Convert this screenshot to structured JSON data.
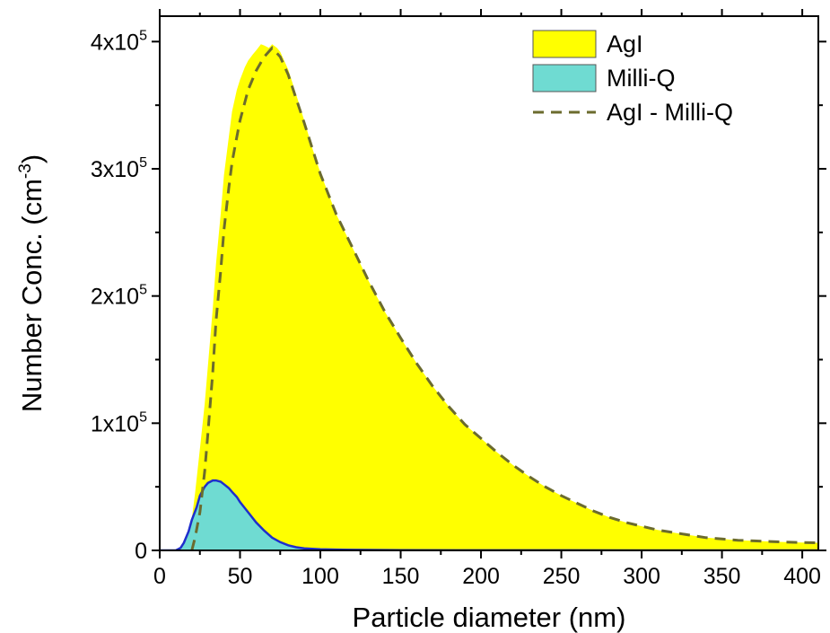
{
  "chart_data": {
    "type": "area",
    "title": "",
    "xlabel": "Particle diameter (nm)",
    "ylabel": {
      "main": "Number Conc. (cm",
      "exp": "-3",
      "close": ")"
    },
    "xlim": [
      0,
      410
    ],
    "ylim": [
      0,
      420000
    ],
    "x_ticks": [
      0,
      50,
      100,
      150,
      200,
      250,
      300,
      350,
      400
    ],
    "x_tick_labels": [
      "0",
      "50",
      "100",
      "150",
      "200",
      "250",
      "300",
      "350",
      "400"
    ],
    "y_ticks": [
      0,
      100000,
      200000,
      300000,
      400000
    ],
    "y_tick_labels": [
      {
        "base": "0",
        "exp": ""
      },
      {
        "base": "1x10",
        "exp": "5"
      },
      {
        "base": "2x10",
        "exp": "5"
      },
      {
        "base": "3x10",
        "exp": "5"
      },
      {
        "base": "4x10",
        "exp": "5"
      }
    ],
    "legend_position": "top-right",
    "grid": false,
    "series": [
      {
        "name": "AgI",
        "style": "filled-area",
        "fill": "#ffff00",
        "stroke": "#ffff00",
        "x": [
          15,
          18,
          20,
          22,
          25,
          28,
          30,
          33,
          35,
          38,
          40,
          43,
          45,
          48,
          50,
          53,
          55,
          58,
          60,
          63,
          65,
          68,
          70,
          73,
          75,
          80,
          85,
          90,
          95,
          100,
          110,
          120,
          130,
          140,
          150,
          160,
          170,
          180,
          190,
          200,
          210,
          220,
          230,
          240,
          250,
          260,
          270,
          280,
          290,
          300,
          310,
          320,
          330,
          340,
          350,
          360,
          370,
          380,
          390,
          400,
          410
        ],
        "y": [
          0,
          12000,
          25000,
          45000,
          80000,
          115000,
          145000,
          190000,
          225000,
          265000,
          295000,
          325000,
          345000,
          362000,
          370000,
          380000,
          385000,
          390000,
          393000,
          398000,
          397000,
          395000,
          398000,
          395000,
          392000,
          378000,
          358000,
          338000,
          316000,
          297000,
          264000,
          238000,
          212000,
          188000,
          167000,
          147000,
          129000,
          113000,
          99000,
          88000,
          77000,
          67000,
          58000,
          50000,
          43000,
          37000,
          31000,
          26000,
          22000,
          19000,
          16000,
          14000,
          12000,
          10000,
          9000,
          8000,
          7500,
          7000,
          6500,
          6200,
          6000
        ]
      },
      {
        "name": "Milli-Q",
        "style": "filled-area",
        "fill": "#6fdbd2",
        "stroke": "#1f2ecc",
        "x": [
          0,
          10,
          13,
          15,
          18,
          20,
          23,
          25,
          28,
          30,
          33,
          35,
          38,
          40,
          43,
          45,
          48,
          50,
          55,
          60,
          65,
          70,
          75,
          80,
          85,
          90,
          100,
          110,
          120,
          150,
          200,
          250,
          300,
          350,
          410
        ],
        "y": [
          0,
          0,
          2000,
          6000,
          15000,
          24000,
          34000,
          43000,
          50000,
          53000,
          55000,
          55000,
          54000,
          52000,
          49000,
          46000,
          42000,
          38000,
          30000,
          22000,
          15500,
          10000,
          6500,
          4000,
          2500,
          1600,
          900,
          600,
          400,
          200,
          100,
          50,
          20,
          10,
          0
        ]
      },
      {
        "name": "AgI - Milli-Q",
        "style": "dashed-line",
        "stroke": "#6b6b2e",
        "x": [
          20,
          22,
          25,
          28,
          30,
          33,
          35,
          38,
          40,
          43,
          45,
          48,
          50,
          55,
          60,
          65,
          70,
          75,
          80,
          90,
          100,
          110,
          120,
          130,
          140,
          150,
          160,
          170,
          180,
          190,
          200,
          210,
          220,
          230,
          240,
          250,
          260,
          270,
          280,
          290,
          300,
          310,
          320,
          330,
          340,
          350,
          360,
          370,
          380,
          390,
          400,
          410
        ],
        "y": [
          0,
          10000,
          30000,
          62000,
          92000,
          140000,
          180000,
          220000,
          252000,
          285000,
          305000,
          325000,
          338000,
          362000,
          377000,
          388000,
          395000,
          388000,
          374000,
          336000,
          296000,
          264000,
          238000,
          212000,
          188000,
          167000,
          147000,
          129000,
          113000,
          99000,
          88000,
          77000,
          67000,
          58000,
          50000,
          43000,
          37000,
          31000,
          26000,
          22000,
          19000,
          16000,
          14000,
          12000,
          10000,
          9000,
          8000,
          7500,
          7000,
          6500,
          6200,
          6000
        ]
      }
    ]
  }
}
